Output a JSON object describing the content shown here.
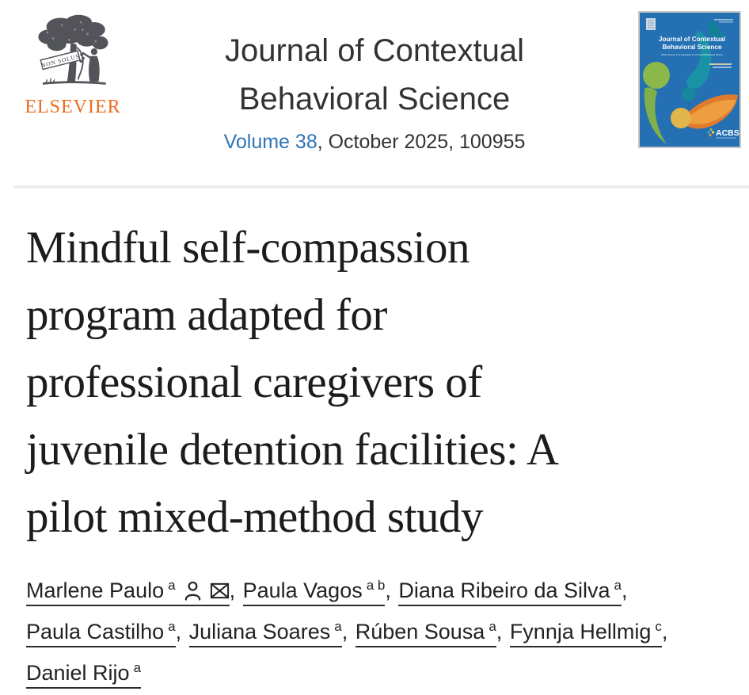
{
  "header": {
    "publisher_wordmark": "ELSEVIER",
    "publisher_motto": "NON SOLUS",
    "journal_title_line1": "Journal of Contextual",
    "journal_title_line2": "Behavioral Science",
    "volume_link": "Volume 38",
    "issue_info": ", October 2025, 100955"
  },
  "cover": {
    "title_line1": "Journal of Contextual",
    "title_line2": "Behavioral Science",
    "subtitle": "Official Journal of the Association for Contextual Behavioral Science",
    "acbs_label": "ACBS",
    "colors": {
      "background": "#2470b3",
      "teal": "#1a95a5",
      "teal_dark": "#12809b",
      "green": "#8cb84b",
      "orange": "#e07b2d",
      "orange_light": "#f0a343",
      "yellow": "#e2b54a"
    }
  },
  "article": {
    "title": "Mindful self-compassion program adapted for professional caregivers of juvenile detention facilities: A pilot mixed-method study",
    "title_lines": [
      "Mindful self-compassion",
      "program adapted for",
      "professional caregivers of",
      "juvenile detention facilities: A",
      "pilot mixed-method study"
    ],
    "authors": [
      {
        "name": "Marlene Paulo",
        "sup": "a",
        "icons": [
          "person-icon",
          "email-icon"
        ]
      },
      {
        "name": "Paula Vagos",
        "sup": "a b",
        "icons": []
      },
      {
        "name": "Diana Ribeiro da Silva",
        "sup": "a",
        "icons": []
      },
      {
        "name": "Paula Castilho",
        "sup": "a",
        "icons": []
      },
      {
        "name": "Juliana Soares",
        "sup": "a",
        "icons": []
      },
      {
        "name": "Rúben Sousa",
        "sup": "a",
        "icons": []
      },
      {
        "name": "Fynnja Hellmig",
        "sup": "c",
        "icons": []
      },
      {
        "name": "Daniel Rijo",
        "sup": "a",
        "icons": []
      }
    ]
  },
  "colors": {
    "link_blue": "#2f74b5",
    "elsevier_orange": "#eb6b1e",
    "divider_gray": "#ededed",
    "title_text": "#1c1c1c",
    "body_text": "#222222",
    "header_text": "#333333"
  }
}
